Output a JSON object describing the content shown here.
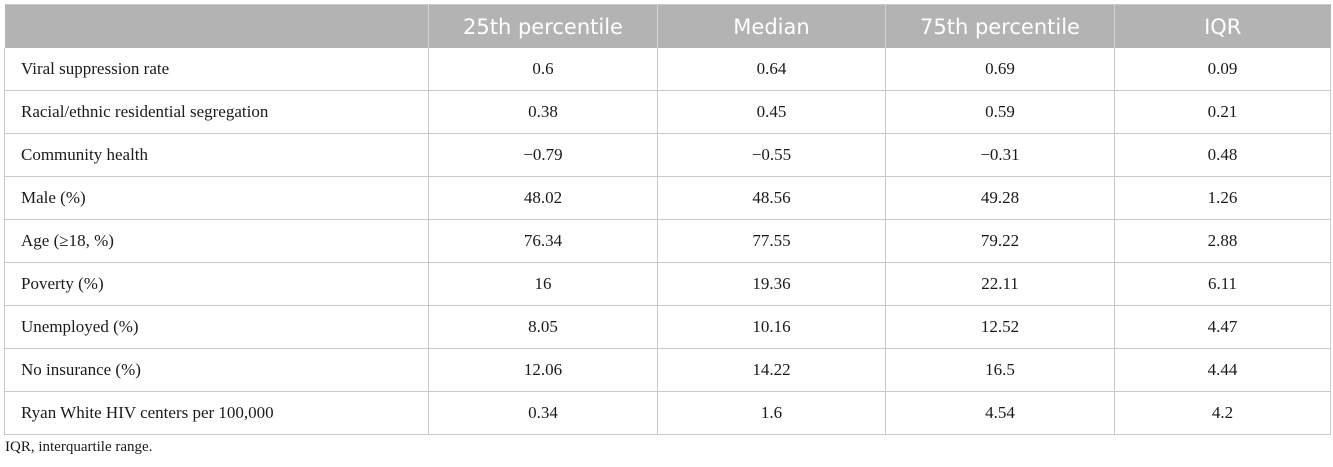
{
  "table": {
    "headers": [
      "",
      "25th percentile",
      "Median",
      "75th percentile",
      "IQR"
    ],
    "rows": [
      [
        "Viral suppression rate",
        "0.6",
        "0.64",
        "0.69",
        "0.09"
      ],
      [
        "Racial/ethnic residential segregation",
        "0.38",
        "0.45",
        "0.59",
        "0.21"
      ],
      [
        "Community health",
        "−0.79",
        "−0.55",
        "−0.31",
        "0.48"
      ],
      [
        "Male (%)",
        "48.02",
        "48.56",
        "49.28",
        "1.26"
      ],
      [
        "Age (≥18, %)",
        "76.34",
        "77.55",
        "79.22",
        "2.88"
      ],
      [
        "Poverty (%)",
        "16",
        "19.36",
        "22.11",
        "6.11"
      ],
      [
        "Unemployed (%)",
        "8.05",
        "10.16",
        "12.52",
        "4.47"
      ],
      [
        "No insurance (%)",
        "12.06",
        "14.22",
        "16.5",
        "4.44"
      ],
      [
        "Ryan White HIV centers per 100,000",
        "0.34",
        "1.6",
        "4.54",
        "4.2"
      ]
    ]
  },
  "footnote": "IQR, interquartile range.",
  "colors": {
    "header_bg": "#b3b3b3",
    "header_text": "#ffffff",
    "grid": "#c9c9c9",
    "body_text": "#1a1a1a"
  }
}
